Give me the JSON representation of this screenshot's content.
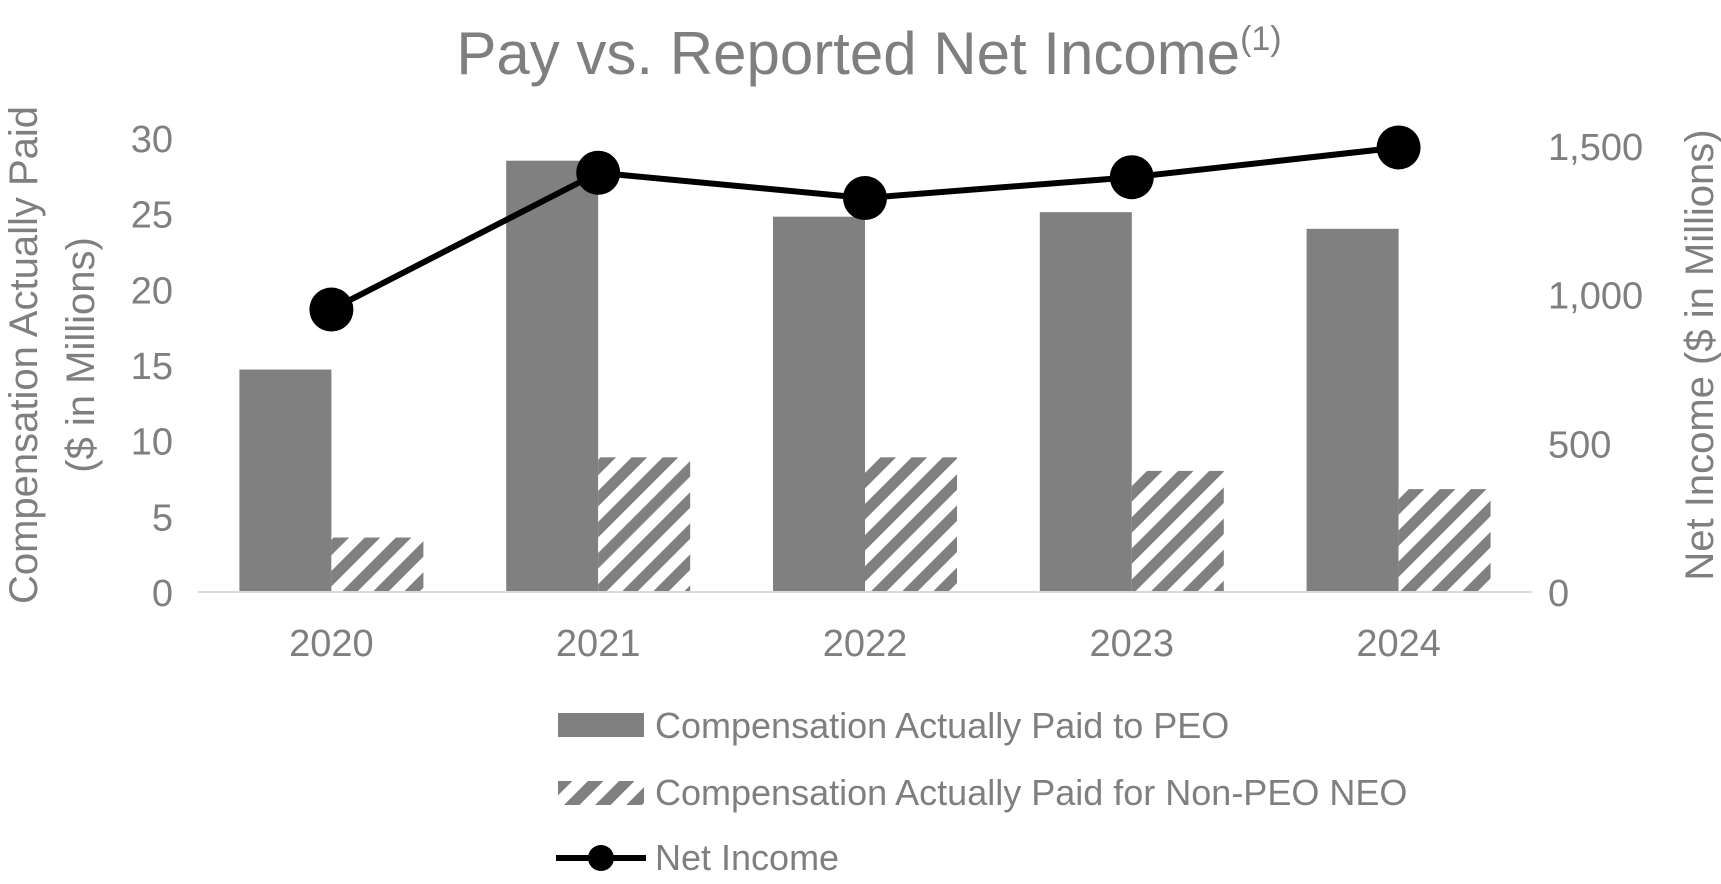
{
  "chart_data": {
    "type": "bar",
    "title": "Pay vs. Reported Net Income",
    "title_superscript": "(1)",
    "categories": [
      "2020",
      "2021",
      "2022",
      "2023",
      "2024"
    ],
    "ylabel_left": [
      "Compensation Actually Paid",
      "($ in Millions)"
    ],
    "ylabel_right": "Net Income ($ in Millions)",
    "ylim_left": [
      0,
      30
    ],
    "ylim_right": [
      0,
      1500
    ],
    "yticks_left": [
      "0",
      "5",
      "10",
      "15",
      "20",
      "25",
      "30"
    ],
    "yticks_right": [
      "0",
      "500",
      "1,000",
      "1,500"
    ],
    "grid": false,
    "legend_position": "bottom",
    "series": [
      {
        "name": "Compensation Actually Paid to PEO",
        "type": "bar",
        "axis": "left",
        "style": "solid",
        "color": "#808080",
        "values": [
          14.7,
          28.5,
          24.8,
          25.1,
          24.0
        ]
      },
      {
        "name": "Compensation Actually Paid for Non-PEO NEO",
        "type": "bar",
        "axis": "left",
        "style": "hatched",
        "color": "#808080",
        "values": [
          3.6,
          8.9,
          8.9,
          8.0,
          6.8
        ]
      },
      {
        "name": "Net Income",
        "type": "line",
        "axis": "right",
        "style": "line-with-markers",
        "color": "#000000",
        "values": [
          950,
          1410,
          1325,
          1395,
          1495
        ]
      }
    ],
    "colors": {
      "text": "#7f7f7f",
      "axis_line": "#d9d9d9",
      "bar": "#808080",
      "line": "#000000"
    }
  }
}
